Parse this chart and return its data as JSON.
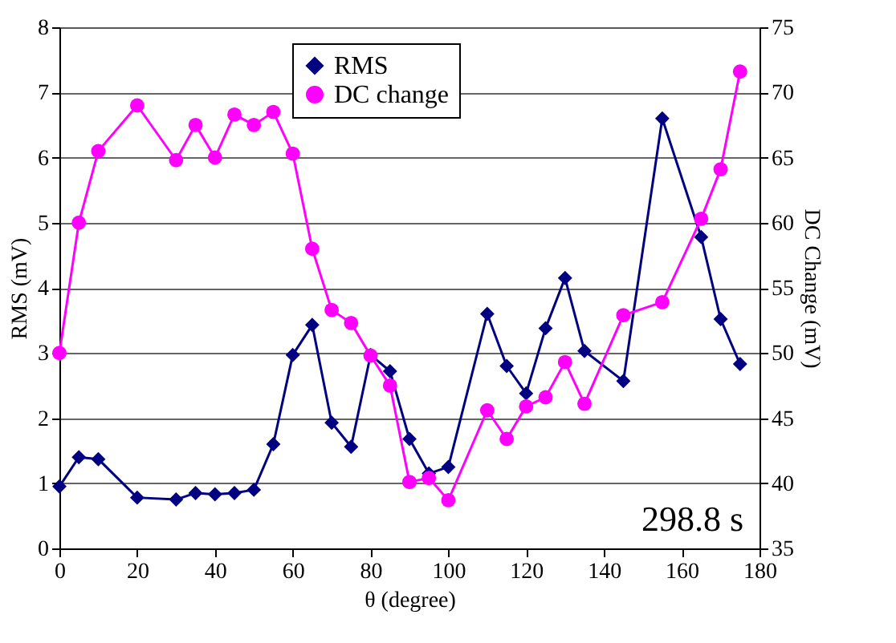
{
  "chart_data": {
    "type": "line",
    "xlabel": "θ (degree)",
    "ylabel": "RMS (mV)",
    "y2label": "DC Change (mV)",
    "x": [
      0,
      5,
      10,
      20,
      30,
      35,
      40,
      45,
      50,
      55,
      60,
      65,
      70,
      75,
      80,
      85,
      90,
      95,
      100,
      110,
      115,
      120,
      125,
      130,
      135,
      145,
      155,
      165,
      170,
      175
    ],
    "series": [
      {
        "name": "RMS",
        "color": "#000080",
        "marker": "diamond",
        "values": [
          0.95,
          1.4,
          1.37,
          0.78,
          0.75,
          0.85,
          0.83,
          0.85,
          0.9,
          1.6,
          2.97,
          3.43,
          1.93,
          1.56,
          2.97,
          2.72,
          1.68,
          1.15,
          1.25,
          3.6,
          2.8,
          2.38,
          3.38,
          4.15,
          3.03,
          2.57,
          6.6,
          4.78,
          3.52,
          2.83
        ]
      },
      {
        "name": "DC change",
        "color": "#ff00ff",
        "marker": "circle",
        "axis": "y2",
        "values": [
          50,
          60,
          65.5,
          69,
          64.8,
          67.5,
          65,
          68.3,
          67.5,
          68.5,
          65.3,
          58,
          53.3,
          52.3,
          49.8,
          47.5,
          40.1,
          40.4,
          38.7,
          45.6,
          43.4,
          45.9,
          46.6,
          49.3,
          46.1,
          52.9,
          53.9,
          60.3,
          64.1,
          71.6
        ]
      }
    ],
    "xlim": [
      0,
      180
    ],
    "xticks": [
      0,
      20,
      40,
      60,
      80,
      100,
      120,
      140,
      160,
      180
    ],
    "ylim": [
      0,
      8
    ],
    "yticks": [
      0,
      1,
      2,
      3,
      4,
      5,
      6,
      7,
      8
    ],
    "y2lim": [
      35,
      75
    ],
    "y2ticks": [
      35,
      40,
      45,
      50,
      55,
      60,
      65,
      70,
      75
    ],
    "grid": "y",
    "legend": "top",
    "annotations": [
      "298.8 s"
    ]
  }
}
